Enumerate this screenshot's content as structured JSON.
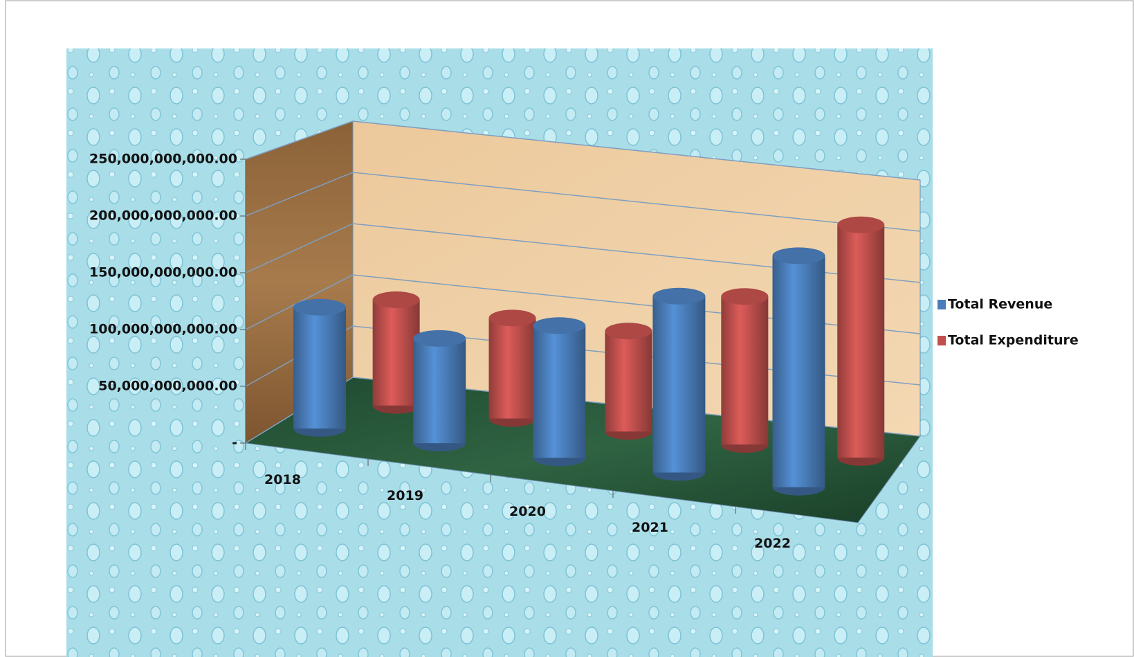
{
  "chart_data": {
    "type": "bar3d",
    "categories": [
      "2018",
      "2019",
      "2020",
      "2021",
      "2022"
    ],
    "series": [
      {
        "name": "Total Revenue",
        "color": "#4a7ebb",
        "values": [
          110000000000,
          95000000000,
          120000000000,
          160000000000,
          210000000000
        ]
      },
      {
        "name": "Total Expenditure",
        "color": "#c0504d",
        "values": [
          100000000000,
          95000000000,
          95000000000,
          140000000000,
          220000000000
        ]
      }
    ],
    "ylim": [
      0,
      250000000000
    ],
    "yticks": [
      {
        "value": 0,
        "label": "-"
      },
      {
        "value": 50000000000,
        "label": "50,000,000,000.00"
      },
      {
        "value": 100000000000,
        "label": "100,000,000,000.00"
      },
      {
        "value": 150000000000,
        "label": "150,000,000,000.00"
      },
      {
        "value": 200000000000,
        "label": "200,000,000,000.00"
      },
      {
        "value": 250000000000,
        "label": "250,000,000,000.00"
      }
    ],
    "grid": true,
    "legend": "right"
  }
}
